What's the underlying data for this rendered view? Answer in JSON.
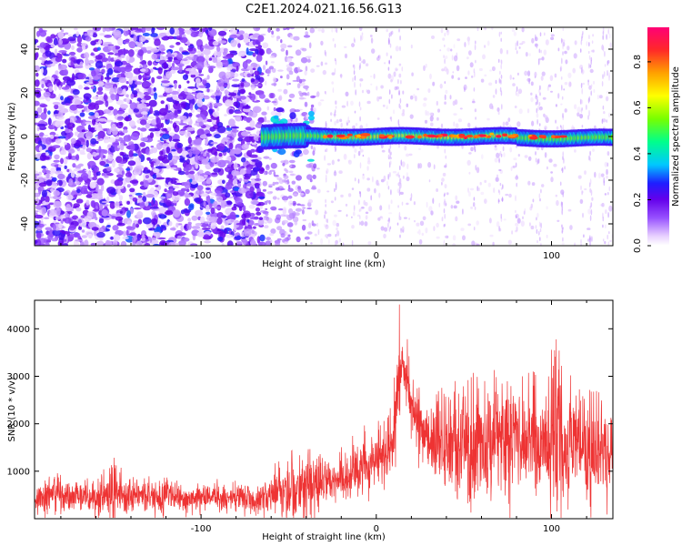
{
  "title": "C2E1.2024.021.16.56.G13",
  "colors": {
    "snr_line": "#ee3333",
    "axes": "#000000",
    "background": "#ffffff"
  },
  "chart_data": [
    {
      "type": "heatmap",
      "xlabel": "Height of straight line (km)",
      "ylabel": "Frequency (Hz)",
      "xlim": [
        -195,
        135
      ],
      "ylim": [
        -50,
        50
      ],
      "xticks": [
        -100,
        0,
        100
      ],
      "xtick_labels": [
        "-100",
        "0",
        "100"
      ],
      "yticks": [
        -40,
        -20,
        0,
        20,
        40
      ],
      "ytick_labels": [
        "-40",
        "-20",
        "0",
        "20",
        "40"
      ],
      "grid": false,
      "colorbar": {
        "label": "Normalized spectral amplitude",
        "range": [
          0,
          0.95
        ],
        "ticks": [
          0.0,
          0.2,
          0.4,
          0.6,
          0.8
        ],
        "tick_labels": [
          "0.0",
          "0.2",
          "0.4",
          "0.6",
          "0.8"
        ],
        "colormap": "rainbow (white-violet-blue-cyan-green-yellow-orange-red-pink)"
      },
      "features": {
        "noise_region_x": [
          -195,
          -65
        ],
        "sparse_region_x": [
          -65,
          -35
        ],
        "signal_band": {
          "x_start": -65,
          "x_end": 135,
          "frequency_hz": 0,
          "peak_amplitude_x": [
            -30,
            80
          ],
          "peak_amplitude": 0.9
        }
      }
    },
    {
      "type": "line",
      "xlabel": "Height of straight line (km)",
      "ylabel": "SNR (10 * v/v)",
      "xlim": [
        -195,
        135
      ],
      "ylim": [
        0,
        4600
      ],
      "xticks": [
        -100,
        0,
        100
      ],
      "xtick_labels": [
        "-100",
        "0",
        "100"
      ],
      "yticks": [
        1000,
        2000,
        3000,
        4000
      ],
      "ytick_labels": [
        "1000",
        "2000",
        "3000",
        "4000"
      ],
      "grid": false,
      "series": [
        {
          "envelope": {
            "x": [
              -195,
              -185,
              -170,
              -160,
              -150,
              -140,
              -130,
              -120,
              -110,
              -100,
              -90,
              -80,
              -70,
              -60,
              -50,
              -40,
              -30,
              -20,
              -10,
              -5,
              0,
              5,
              10,
              13,
              15,
              18,
              22,
              26,
              30,
              40,
              50,
              55,
              60,
              70,
              80,
              90,
              95,
              100,
              105,
              110,
              120,
              130,
              135
            ],
            "mean": [
              350,
              450,
              480,
              420,
              520,
              480,
              460,
              450,
              420,
              430,
              480,
              420,
              380,
              520,
              600,
              700,
              680,
              850,
              1050,
              1150,
              1250,
              1400,
              1800,
              2800,
              3300,
              2800,
              2200,
              1900,
              1700,
              1600,
              1600,
              1650,
              1650,
              1700,
              1700,
              1650,
              1650,
              1650,
              1650,
              1650,
              1400,
              1350,
              1300
            ],
            "max": [
              600,
              1000,
              800,
              900,
              1300,
              900,
              950,
              900,
              800,
              800,
              850,
              800,
              850,
              1100,
              1400,
              1600,
              1300,
              1500,
              1900,
              2000,
              2000,
              2300,
              2800,
              4600,
              3600,
              3800,
              3200,
              2700,
              2600,
              3000,
              3100,
              3500,
              3000,
              3400,
              3100,
              3100,
              2700,
              4000,
              4200,
              3100,
              2800,
              2600,
              2500
            ]
          }
        }
      ]
    }
  ]
}
